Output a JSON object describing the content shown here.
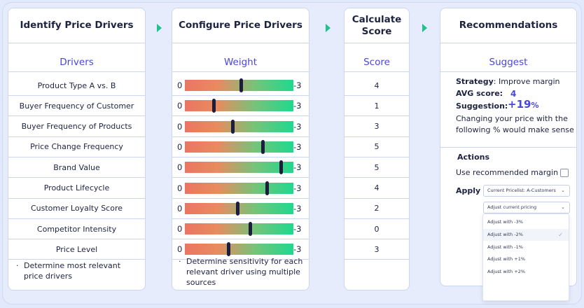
{
  "columns": {
    "identify": {
      "title": "Identify Price Drivers",
      "subheader": "Drivers",
      "rows": [
        "Product Type A vs. B",
        "Buyer Frequency of Customer",
        "Buyer Frequency of Products",
        "Price Change Frequency",
        "Brand Value",
        "Product Lifecycle",
        "Customer Loyalty Score",
        "Competitor Intensity",
        "Price Level"
      ],
      "footnote_bullet": "·",
      "footnote": "Determine most relevant price drivers"
    },
    "configure": {
      "title": "Configure Price Drivers",
      "subheader": "Weight",
      "slider_min": "0",
      "slider_max": "-3",
      "sliders": [
        0.52,
        0.27,
        0.44,
        0.72,
        0.89,
        0.76,
        0.49,
        0.6,
        0.4
      ],
      "footnote_bullet": "·",
      "footnote": "Determine sensitivity for each relevant driver using multiple sources"
    },
    "score": {
      "title": "Calculate Score",
      "subheader": "Score",
      "values": [
        "4",
        "1",
        "3",
        "5",
        "5",
        "4",
        "2",
        "0",
        "3"
      ]
    },
    "recommendations": {
      "title": "Recommendations",
      "subheader": "Suggest",
      "strategy_label": "Strategy",
      "strategy_value": ": Improve margin",
      "avg_label": "AVG score:",
      "avg_value": "4",
      "suggestion_label": "Suggestion:",
      "suggestion_value": "+19",
      "suggestion_unit": "%",
      "suggestion_text": "Changing your price with the following % would make sense",
      "actions_label": "Actions",
      "use_margin_label": "Use recommended margin",
      "use_margin_checked": false,
      "apply_label": "Apply",
      "pricelist_select": "Current Pricelist: A-Customers",
      "adjust_select": "Adjust current pricing",
      "adjust_options": [
        {
          "label": "Adjust with -3%",
          "selected": false
        },
        {
          "label": "Adjust with -2%",
          "selected": true
        },
        {
          "label": "Adjust with -1%",
          "selected": false
        },
        {
          "label": "Adjust with +1%",
          "selected": false
        },
        {
          "label": "Adjust with +2%",
          "selected": false
        }
      ],
      "check_icon": "✓",
      "chevron_icon": "⌄"
    }
  },
  "colors": {
    "accent": "#4a46d9",
    "arrow": "#1ec38b",
    "slider_low": "#ea7562",
    "slider_high": "#1ed98e",
    "thumb": "#1b1f3d"
  }
}
